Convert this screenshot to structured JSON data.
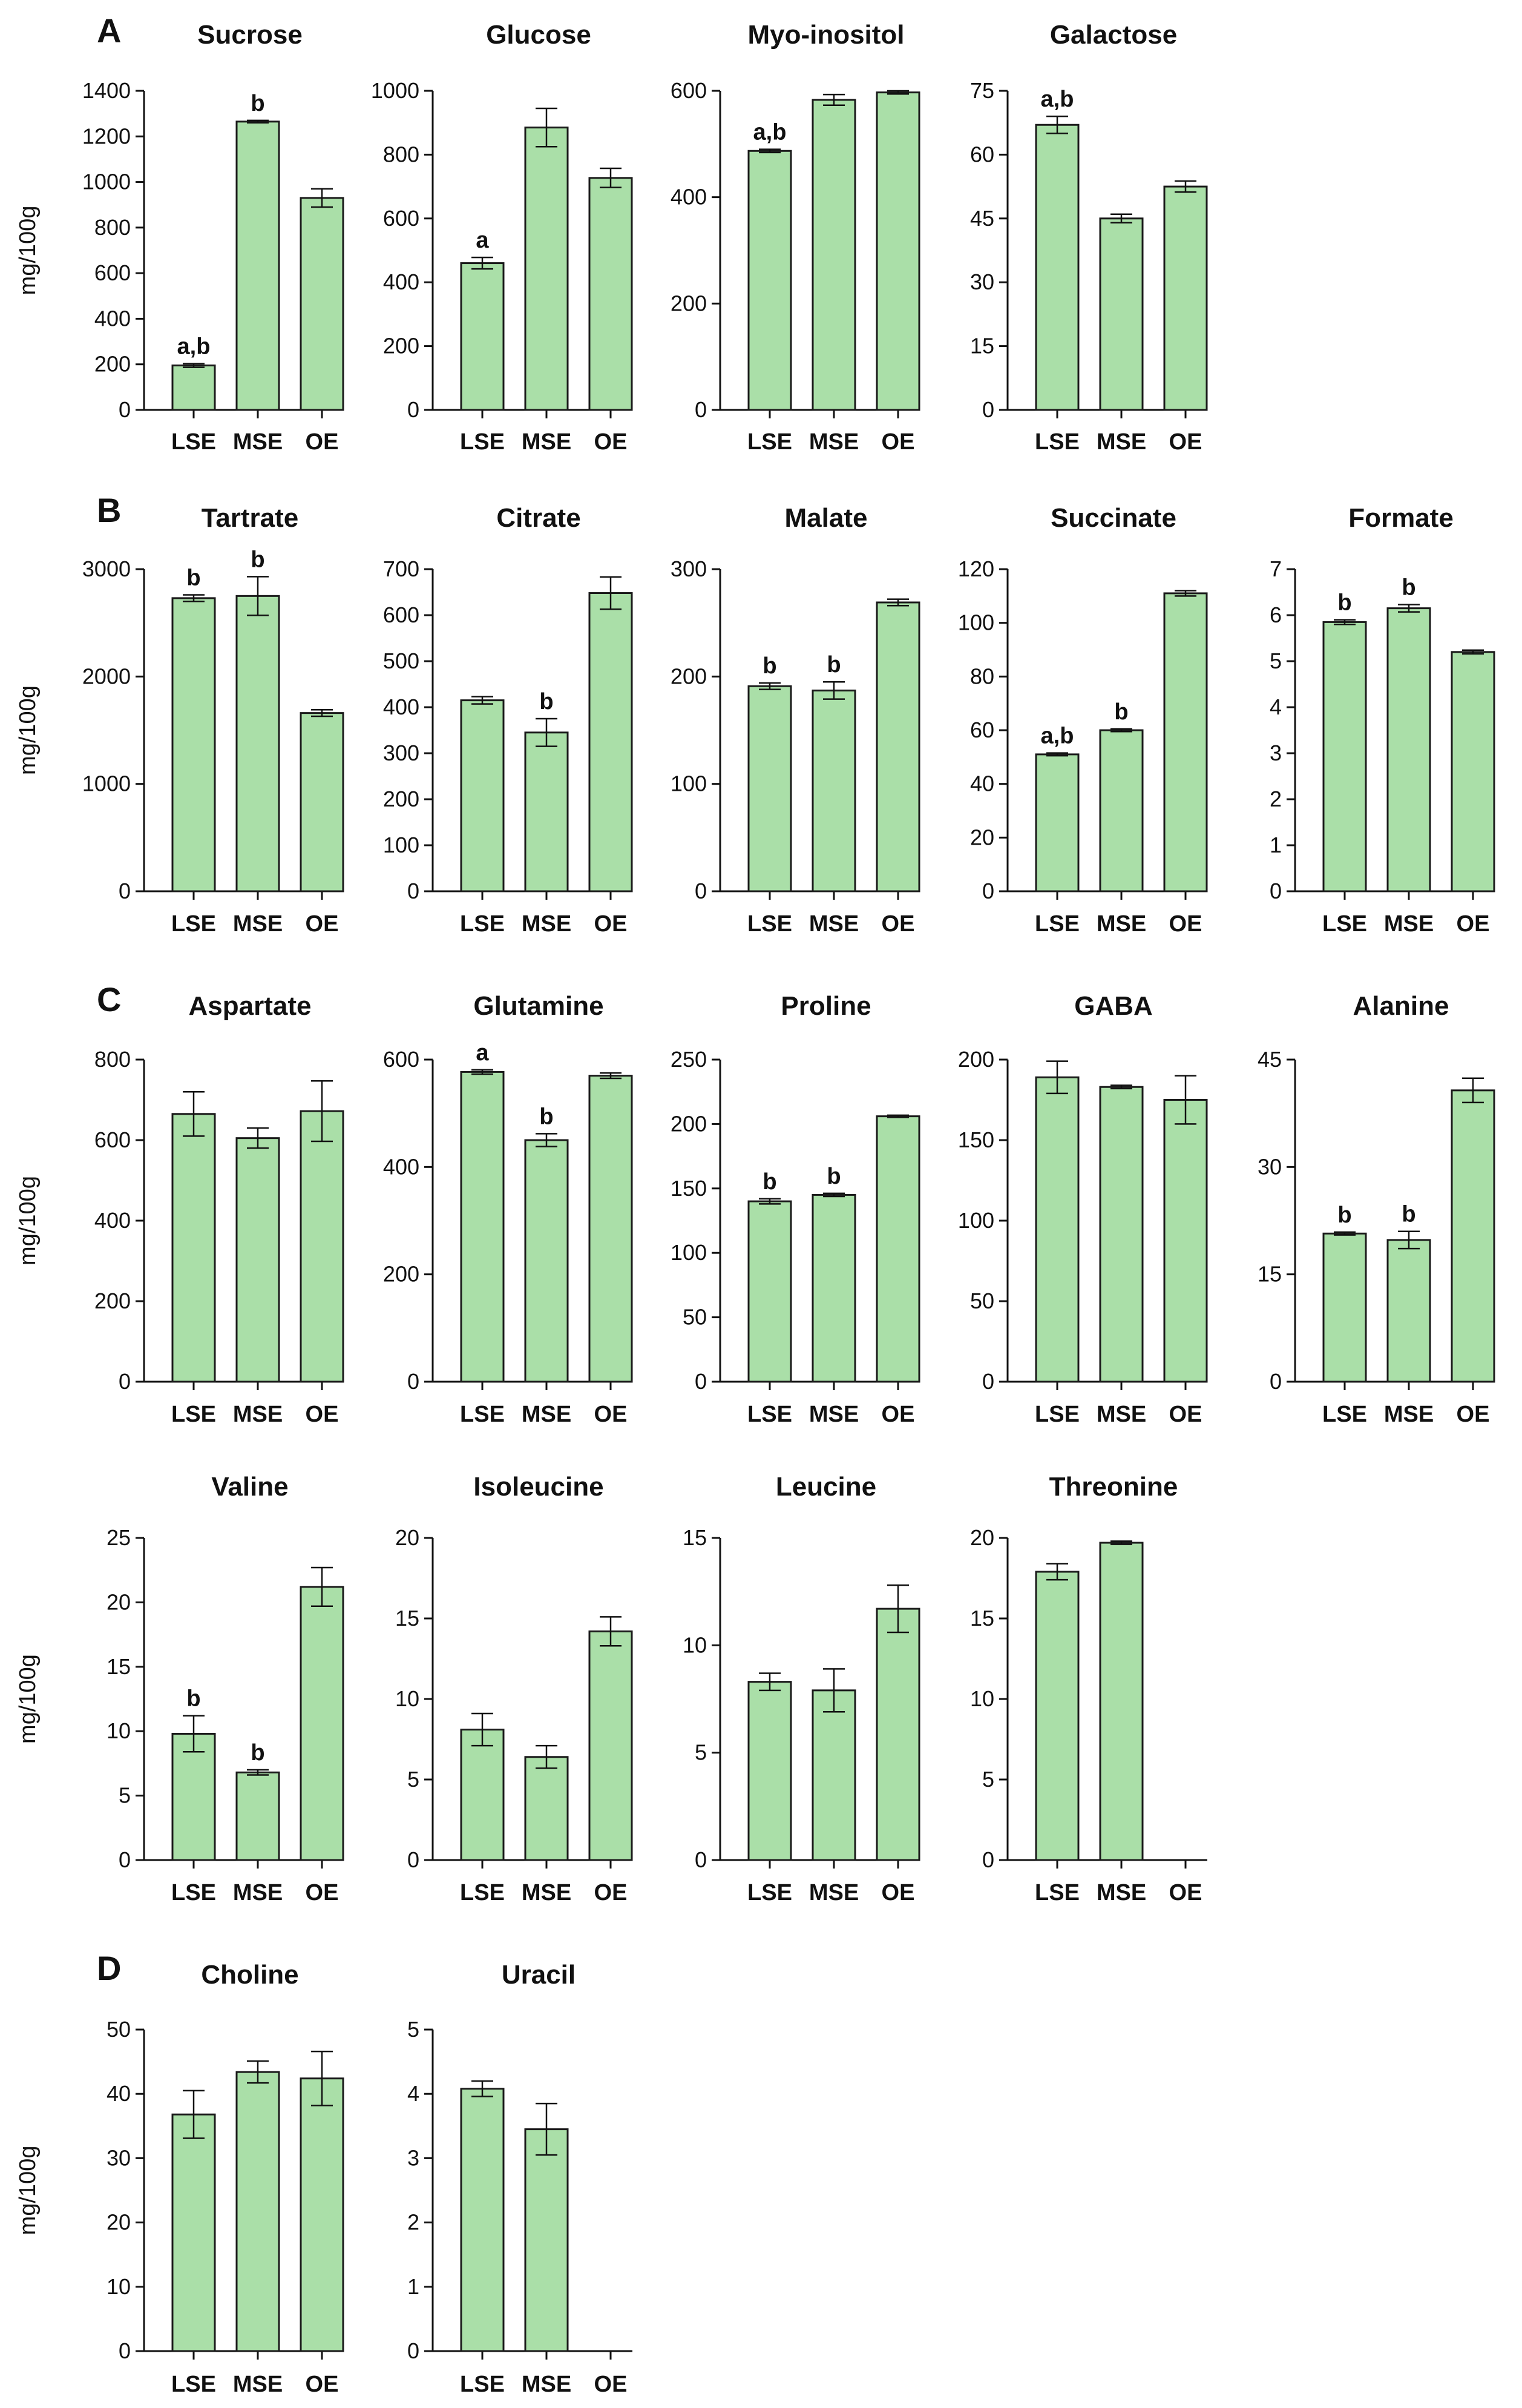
{
  "figure": {
    "ylabel": "mg/100g",
    "colors": {
      "bar_fill": "#aadfa8",
      "bar_stroke": "#1a1a1a",
      "axis": "#111111"
    }
  },
  "chart_data": [
    {
      "type": "bar",
      "panel": "A",
      "title": "Sucrose",
      "categories": [
        "LSE",
        "MSE",
        "OE"
      ],
      "values": [
        195,
        1265,
        930
      ],
      "errors": [
        8,
        5,
        40
      ],
      "ylim": [
        0,
        1400
      ],
      "yticks": [
        "0",
        "200",
        "400",
        "600",
        "800",
        "1000",
        "1200",
        "1400"
      ],
      "labels": [
        "a,b",
        "b",
        ""
      ]
    },
    {
      "type": "bar",
      "title": "Glucose",
      "categories": [
        "LSE",
        "MSE",
        "OE"
      ],
      "values": [
        460,
        885,
        727
      ],
      "errors": [
        18,
        60,
        30
      ],
      "ylim": [
        0,
        1000
      ],
      "yticks": [
        "0",
        "200",
        "400",
        "600",
        "800",
        "1000"
      ],
      "labels": [
        "a",
        "",
        ""
      ]
    },
    {
      "type": "bar",
      "title": "Myo-inositol",
      "categories": [
        "LSE",
        "MSE",
        "OE"
      ],
      "values": [
        487,
        583,
        597
      ],
      "errors": [
        3,
        10,
        3
      ],
      "ylim": [
        0,
        600
      ],
      "yticks": [
        "0",
        "200",
        "400",
        "600"
      ],
      "labels": [
        "a,b",
        "",
        ""
      ]
    },
    {
      "type": "bar",
      "title": "Galactose",
      "categories": [
        "LSE",
        "MSE",
        "OE"
      ],
      "values": [
        67,
        45,
        52.5
      ],
      "errors": [
        2,
        1,
        1.3
      ],
      "ylim": [
        0,
        75
      ],
      "yticks": [
        "0",
        "15",
        "30",
        "45",
        "60",
        "75"
      ],
      "labels": [
        "a,b",
        "",
        ""
      ]
    },
    {
      "type": "bar",
      "panel": "B",
      "title": "Tartrate",
      "categories": [
        "LSE",
        "MSE",
        "OE"
      ],
      "values": [
        2730,
        2750,
        1660
      ],
      "errors": [
        30,
        180,
        30
      ],
      "ylim": [
        0,
        3000
      ],
      "yticks": [
        "0",
        "1000",
        "2000",
        "3000"
      ],
      "labels": [
        "b",
        "b",
        ""
      ]
    },
    {
      "type": "bar",
      "title": "Citrate",
      "categories": [
        "LSE",
        "MSE",
        "OE"
      ],
      "values": [
        415,
        345,
        648
      ],
      "errors": [
        8,
        30,
        35
      ],
      "ylim": [
        0,
        700
      ],
      "yticks": [
        "0",
        "100",
        "200",
        "300",
        "400",
        "500",
        "600",
        "700"
      ],
      "labels": [
        "",
        "b",
        ""
      ]
    },
    {
      "type": "bar",
      "title": "Malate",
      "categories": [
        "LSE",
        "MSE",
        "OE"
      ],
      "values": [
        191,
        187,
        269
      ],
      "errors": [
        3,
        8,
        3
      ],
      "ylim": [
        0,
        300
      ],
      "yticks": [
        "0",
        "100",
        "200",
        "300"
      ],
      "labels": [
        "b",
        "b",
        ""
      ]
    },
    {
      "type": "bar",
      "title": "Succinate",
      "categories": [
        "LSE",
        "MSE",
        "OE"
      ],
      "values": [
        51,
        60,
        111
      ],
      "errors": [
        0.5,
        0.5,
        1
      ],
      "ylim": [
        0,
        120
      ],
      "yticks": [
        "0",
        "20",
        "40",
        "60",
        "80",
        "100",
        "120"
      ],
      "labels": [
        "a,b",
        "b",
        ""
      ]
    },
    {
      "type": "bar",
      "title": "Formate",
      "categories": [
        "LSE",
        "MSE",
        "OE"
      ],
      "values": [
        5.85,
        6.15,
        5.2
      ],
      "errors": [
        0.05,
        0.08,
        0.04
      ],
      "ylim": [
        0,
        7
      ],
      "yticks": [
        "0",
        "1",
        "2",
        "3",
        "4",
        "5",
        "6",
        "7"
      ],
      "labels": [
        "b",
        "b",
        ""
      ]
    },
    {
      "type": "bar",
      "panel": "C",
      "title": "Aspartate",
      "categories": [
        "LSE",
        "MSE",
        "OE"
      ],
      "values": [
        665,
        605,
        672
      ],
      "errors": [
        55,
        25,
        75
      ],
      "ylim": [
        0,
        800
      ],
      "yticks": [
        "0",
        "200",
        "400",
        "600",
        "800"
      ],
      "labels": [
        "",
        "",
        ""
      ]
    },
    {
      "type": "bar",
      "title": "Glutamine",
      "categories": [
        "LSE",
        "MSE",
        "OE"
      ],
      "values": [
        577,
        450,
        570
      ],
      "errors": [
        4,
        12,
        5
      ],
      "ylim": [
        0,
        600
      ],
      "yticks": [
        "0",
        "200",
        "400",
        "600"
      ],
      "labels": [
        "a",
        "b",
        ""
      ]
    },
    {
      "type": "bar",
      "title": "Proline",
      "categories": [
        "LSE",
        "MSE",
        "OE"
      ],
      "values": [
        140,
        145,
        206
      ],
      "errors": [
        2,
        1.2,
        0.8
      ],
      "ylim": [
        0,
        250
      ],
      "yticks": [
        "0",
        "50",
        "100",
        "150",
        "200",
        "250"
      ],
      "labels": [
        "b",
        "b",
        ""
      ]
    },
    {
      "type": "bar",
      "title": "GABA",
      "categories": [
        "LSE",
        "MSE",
        "OE"
      ],
      "values": [
        189,
        183,
        175
      ],
      "errors": [
        10,
        1,
        15
      ],
      "ylim": [
        0,
        200
      ],
      "yticks": [
        "0",
        "50",
        "100",
        "150",
        "200"
      ],
      "labels": [
        "",
        "",
        ""
      ]
    },
    {
      "type": "bar",
      "title": "Alanine",
      "categories": [
        "LSE",
        "MSE",
        "OE"
      ],
      "values": [
        20.7,
        19.8,
        40.7
      ],
      "errors": [
        0.2,
        1.2,
        1.7
      ],
      "ylim": [
        0,
        45
      ],
      "yticks": [
        "0",
        "15",
        "30",
        "45"
      ],
      "labels": [
        "b",
        "b",
        ""
      ]
    },
    {
      "type": "bar",
      "title": "Valine",
      "categories": [
        "LSE",
        "MSE",
        "OE"
      ],
      "values": [
        9.8,
        6.8,
        21.2
      ],
      "errors": [
        1.4,
        0.2,
        1.5
      ],
      "ylim": [
        0,
        25
      ],
      "yticks": [
        "0",
        "5",
        "10",
        "15",
        "20",
        "25"
      ],
      "labels": [
        "b",
        "b",
        ""
      ]
    },
    {
      "type": "bar",
      "title": "Isoleucine",
      "categories": [
        "LSE",
        "MSE",
        "OE"
      ],
      "values": [
        8.1,
        6.4,
        14.2
      ],
      "errors": [
        1.0,
        0.7,
        0.9
      ],
      "ylim": [
        0,
        20
      ],
      "yticks": [
        "0",
        "5",
        "10",
        "15",
        "20"
      ],
      "labels": [
        "",
        "",
        ""
      ]
    },
    {
      "type": "bar",
      "title": "Leucine",
      "categories": [
        "LSE",
        "MSE",
        "OE"
      ],
      "values": [
        8.3,
        7.9,
        11.7
      ],
      "errors": [
        0.4,
        1.0,
        1.1
      ],
      "ylim": [
        0,
        15
      ],
      "yticks": [
        "0",
        "5",
        "10",
        "15"
      ],
      "labels": [
        "",
        "",
        ""
      ]
    },
    {
      "type": "bar",
      "title": "Threonine",
      "categories": [
        "LSE",
        "MSE",
        "OE"
      ],
      "values": [
        17.9,
        19.7,
        null
      ],
      "errors": [
        0.5,
        0.1,
        null
      ],
      "ylim": [
        0,
        20
      ],
      "yticks": [
        "0",
        "5",
        "10",
        "15",
        "20"
      ],
      "labels": [
        "",
        "",
        ""
      ]
    },
    {
      "type": "bar",
      "panel": "D",
      "title": "Choline",
      "categories": [
        "LSE",
        "MSE",
        "OE"
      ],
      "values": [
        36.8,
        43.4,
        42.4
      ],
      "errors": [
        3.7,
        1.7,
        4.2
      ],
      "ylim": [
        0,
        50
      ],
      "yticks": [
        "0",
        "10",
        "20",
        "30",
        "40",
        "50"
      ],
      "labels": [
        "",
        "",
        ""
      ]
    },
    {
      "type": "bar",
      "title": "Uracil",
      "categories": [
        "LSE",
        "MSE",
        "OE"
      ],
      "values": [
        4.08,
        3.45,
        null
      ],
      "errors": [
        0.12,
        0.4,
        null
      ],
      "ylim": [
        0,
        5
      ],
      "yticks": [
        "0",
        "1",
        "2",
        "3",
        "4",
        "5"
      ],
      "labels": [
        "",
        "",
        ""
      ]
    }
  ]
}
